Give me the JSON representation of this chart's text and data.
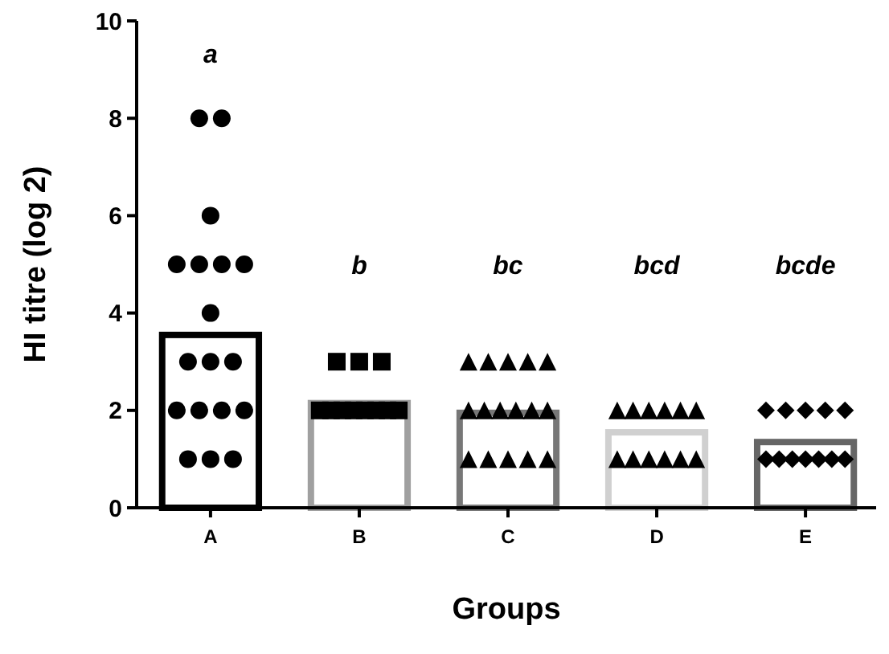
{
  "chart_data": {
    "type": "bar",
    "categories": [
      "A",
      "B",
      "C",
      "D",
      "E"
    ],
    "xlabel": "Groups",
    "ylabel": "HI titre (log 2)",
    "ylim": [
      0,
      10
    ],
    "yticks": [
      0,
      2,
      4,
      6,
      8,
      10
    ],
    "grid": false,
    "series": [
      {
        "values": [
          3.55,
          2.15,
          1.95,
          1.55,
          1.35
        ],
        "colors": [
          "#000000",
          "#a0a0a0",
          "#777777",
          "#d0d0d0",
          "#666666"
        ]
      },
      {
        "type": "scatter",
        "marker": "circle",
        "color": "#000000",
        "x": [
          "A",
          "A",
          "A",
          "A",
          "A",
          "A",
          "A",
          "A",
          "A",
          "A",
          "A",
          "A",
          "A",
          "A",
          "A",
          "A",
          "A",
          "A"
        ],
        "values": [
          8,
          8,
          6,
          5,
          5,
          5,
          5,
          4,
          3,
          3,
          3,
          2,
          2,
          2,
          2,
          1,
          1,
          1
        ]
      },
      {
        "type": "scatter",
        "marker": "square",
        "color": "#000000",
        "x": [
          "B",
          "B",
          "B",
          "B",
          "B",
          "B",
          "B",
          "B",
          "B",
          "B",
          "B"
        ],
        "values": [
          3,
          3,
          3,
          2,
          2,
          2,
          2,
          2,
          2,
          2,
          2
        ]
      },
      {
        "type": "scatter",
        "marker": "triangle",
        "color": "#000000",
        "x": [
          "C",
          "C",
          "C",
          "C",
          "C",
          "C",
          "C",
          "C",
          "C",
          "C",
          "C",
          "C",
          "C",
          "C",
          "C",
          "C"
        ],
        "values": [
          3,
          3,
          3,
          3,
          3,
          2,
          2,
          2,
          2,
          2,
          2,
          1,
          1,
          1,
          1,
          1
        ]
      },
      {
        "type": "scatter",
        "marker": "triangle",
        "color": "#000000",
        "x": [
          "D",
          "D",
          "D",
          "D",
          "D",
          "D",
          "D",
          "D",
          "D",
          "D",
          "D",
          "D"
        ],
        "values": [
          2,
          2,
          2,
          2,
          2,
          2,
          1,
          1,
          1,
          1,
          1,
          1
        ]
      },
      {
        "type": "scatter",
        "marker": "diamond",
        "color": "#000000",
        "x": [
          "E",
          "E",
          "E",
          "E",
          "E",
          "E",
          "E",
          "E",
          "E",
          "E",
          "E",
          "E"
        ],
        "values": [
          2,
          2,
          2,
          2,
          2,
          1,
          1,
          1,
          1,
          1,
          1,
          1
        ]
      }
    ],
    "annotations": [
      "a",
      "b",
      "bc",
      "bcd",
      "bcde"
    ]
  }
}
